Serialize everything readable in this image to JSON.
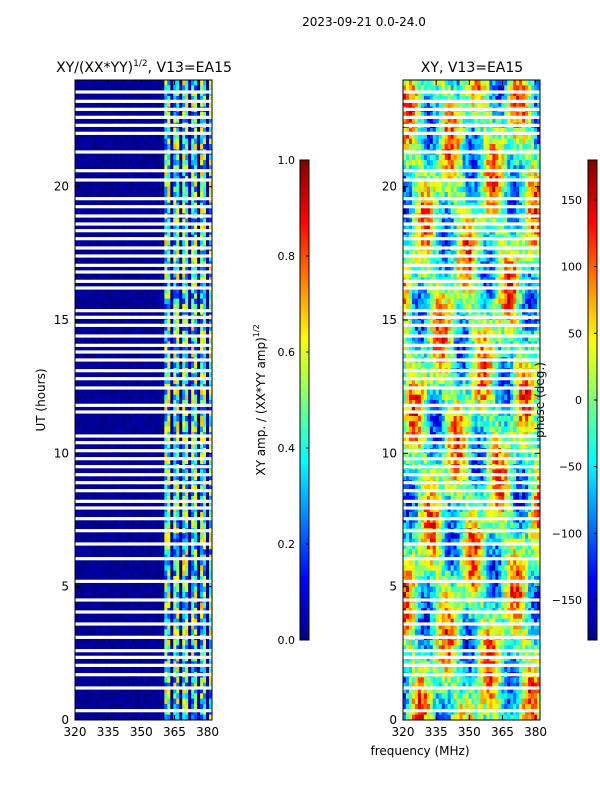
{
  "figure_title": "2023-09-21 0.0-24.0",
  "xlabel": "frequency (MHz)",
  "chart_data": [
    {
      "type": "heatmap",
      "title_base": "XY/(XX*YY)",
      "title_exp": "1/2",
      "title_suffix": ", V13=EA15",
      "xlabel": "",
      "ylabel": "UT (hours)",
      "xlim": [
        320,
        382
      ],
      "ylim": [
        0,
        24
      ],
      "xticks": [
        {
          "v": 320,
          "label": "320"
        },
        {
          "v": 335,
          "label": "335"
        },
        {
          "v": 350,
          "label": "350"
        },
        {
          "v": 365,
          "label": "365"
        },
        {
          "v": 380,
          "label": "380"
        }
      ],
      "yticks": [
        {
          "v": 0,
          "label": "0"
        },
        {
          "v": 5,
          "label": "5"
        },
        {
          "v": 10,
          "label": "10"
        },
        {
          "v": 15,
          "label": "15"
        },
        {
          "v": 20,
          "label": "20"
        }
      ],
      "colorbar": {
        "label_base": "XY amp. / (XX*YY amp)",
        "label_exp": "1/2",
        "range": [
          0,
          1
        ],
        "ticks": [
          {
            "v": 0,
            "label": "0.0"
          },
          {
            "v": 0.2,
            "label": "0.2"
          },
          {
            "v": 0.4,
            "label": "0.4"
          },
          {
            "v": 0.6,
            "label": "0.6"
          },
          {
            "v": 0.8,
            "label": "0.8"
          },
          {
            "v": 1,
            "label": "1.0"
          }
        ]
      }
    },
    {
      "type": "heatmap",
      "title_base": "XY, V13=EA15",
      "xlabel": "",
      "ylabel": "",
      "xlim": [
        320,
        382
      ],
      "ylim": [
        0,
        24
      ],
      "xticks": [
        {
          "v": 320,
          "label": "320"
        },
        {
          "v": 335,
          "label": "335"
        },
        {
          "v": 350,
          "label": "350"
        },
        {
          "v": 365,
          "label": "365"
        },
        {
          "v": 380,
          "label": "380"
        }
      ],
      "yticks": [
        {
          "v": 0,
          "label": "0"
        },
        {
          "v": 5,
          "label": "5"
        },
        {
          "v": 10,
          "label": "10"
        },
        {
          "v": 15,
          "label": "15"
        },
        {
          "v": 20,
          "label": "20"
        }
      ],
      "colorbar": {
        "label_base": "phase (deg.)",
        "range": [
          -180,
          180
        ],
        "ticks": [
          {
            "v": -150,
            "label": "−150"
          },
          {
            "v": -100,
            "label": "−100"
          },
          {
            "v": -50,
            "label": "−50"
          },
          {
            "v": 0,
            "label": "0"
          },
          {
            "v": 50,
            "label": "50"
          },
          {
            "v": 100,
            "label": "100"
          },
          {
            "v": 150,
            "label": "150"
          }
        ]
      }
    }
  ],
  "flagged_hours": [
    0.35,
    1.2,
    1.7,
    2.05,
    2.35,
    2.6,
    3.1,
    3.6,
    4.05,
    4.5,
    5.2,
    6.05,
    6.6,
    7.1,
    7.55,
    7.95,
    8.2,
    8.6,
    8.9,
    9.2,
    9.5,
    9.8,
    10.1,
    10.4,
    10.65,
    11.55,
    11.8,
    12.45,
    12.8,
    13.1,
    13.5,
    13.8,
    14.05,
    14.4,
    14.8,
    15.1,
    15.35,
    16.2,
    16.45,
    16.8,
    17.05,
    17.4,
    17.7,
    18.05,
    18.35,
    18.6,
    18.9,
    19.25,
    19.55,
    20.25,
    20.6,
    21.3,
    22.0,
    22.3,
    22.6,
    22.9,
    23.2,
    23.55
  ]
}
